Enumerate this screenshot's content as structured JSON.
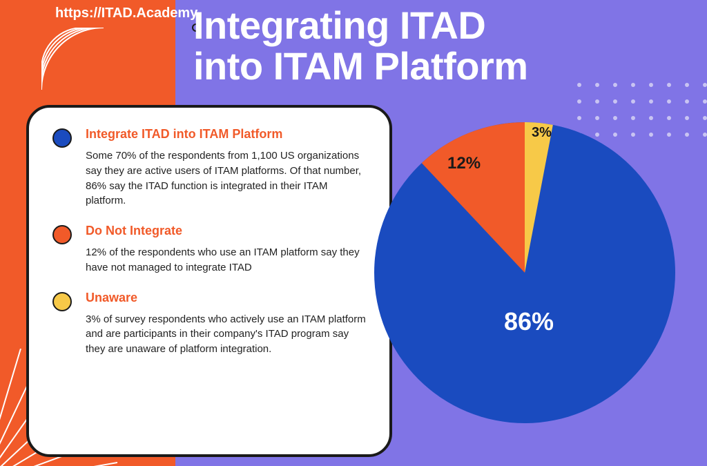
{
  "background_color": "#8074e6",
  "left_bar_color": "#f15a29",
  "brand_url": "https://ITAD.Academy",
  "title_line1": "Integrating ITAD",
  "title_line2": "into ITAM Platform",
  "title_color": "#ffffff",
  "title_fontsize": 56,
  "card": {
    "bg_color": "#ffffff",
    "border_color": "#1a1a1a",
    "border_radius": 34
  },
  "legend": [
    {
      "bullet_color": "#1a4bbf",
      "title": "Integrate ITAD into ITAM Platform",
      "title_color": "#f15a29",
      "body": "Some 70% of the respondents from 1,100 US organizations say they are active users of ITAM platforms. Of that number, 86% say the ITAD function is integrated in their ITAM platform."
    },
    {
      "bullet_color": "#f15a29",
      "title": "Do Not Integrate",
      "title_color": "#f15a29",
      "body": "12% of the respondents who use an ITAM platform say they have not managed to integrate ITAD"
    },
    {
      "bullet_color": "#f7c948",
      "title": "Unaware",
      "title_color": "#f15a29",
      "body": "3% of survey respondents who actively use  an ITAM platform and are participants in their company's ITAD program say they are unaware of platform integration."
    }
  ],
  "pie": {
    "type": "pie",
    "slices": [
      {
        "label": "86%",
        "value": 86,
        "color": "#1a4bbf",
        "label_color": "#ffffff",
        "label_fontsize": 36
      },
      {
        "label": "12%",
        "value": 12,
        "color": "#f15a29",
        "label_color": "#1a1a1a",
        "label_fontsize": 24
      },
      {
        "label": "3%",
        "value": 3,
        "color": "#f7c948",
        "label_color": "#1a1a1a",
        "label_fontsize": 20
      }
    ],
    "diameter": 440,
    "start_angle_deg": -90
  },
  "dot_grid": {
    "rows": 4,
    "cols": 8,
    "dot_color": "#c9c4f2"
  },
  "deco_line_color": "#ffffff"
}
